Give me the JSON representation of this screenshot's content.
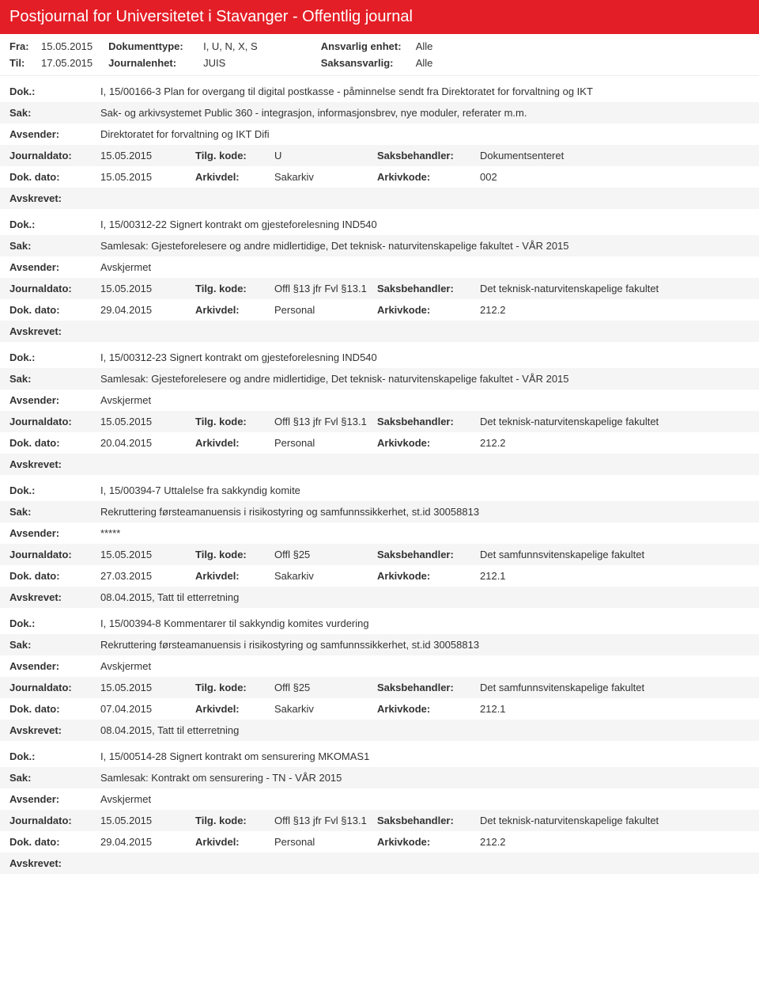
{
  "header": {
    "title": "Postjournal for Universitetet i Stavanger - Offentlig journal"
  },
  "filter": {
    "fra_label": "Fra:",
    "fra_value": "15.05.2015",
    "til_label": "Til:",
    "til_value": "17.05.2015",
    "doktype_label": "Dokumenttype:",
    "doktype_value": "I, U, N, X, S",
    "journalenhet_label": "Journalenhet:",
    "journalenhet_value": "JUIS",
    "ansvarlig_label": "Ansvarlig enhet:",
    "ansvarlig_value": "Alle",
    "saksansvarlig_label": "Saksansvarlig:",
    "saksansvarlig_value": "Alle"
  },
  "labels": {
    "dok": "Dok.:",
    "sak": "Sak:",
    "avsender": "Avsender:",
    "journaldato": "Journaldato:",
    "tilgkode": "Tilg. kode:",
    "saksbehandler": "Saksbehandler:",
    "dokdato": "Dok. dato:",
    "arkivdel": "Arkivdel:",
    "arkivkode": "Arkivkode:",
    "avskrevet": "Avskrevet:"
  },
  "entries": [
    {
      "dok": "I, 15/00166-3 Plan for overgang til digital postkasse - påminnelse sendt fra Direktoratet for forvaltning og IKT",
      "sak": "Sak- og arkivsystemet Public 360 - integrasjon, informasjonsbrev, nye moduler, referater m.m.",
      "avsender": "Direktoratet for forvaltning og IKT Difi",
      "journaldato": "15.05.2015",
      "tilgkode": "U",
      "saksbehandler": "Dokumentsenteret",
      "dokdato": "15.05.2015",
      "arkivdel": "Sakarkiv",
      "arkivkode": "002",
      "avskrevet": ""
    },
    {
      "dok": "I, 15/00312-22 Signert kontrakt om gjesteforelesning IND540",
      "sak": "Samlesak: Gjesteforelesere og andre midlertidige, Det teknisk- naturvitenskapelige fakultet - VÅR 2015",
      "avsender": "Avskjermet",
      "journaldato": "15.05.2015",
      "tilgkode": "Offl §13 jfr Fvl §13.1",
      "saksbehandler": "Det teknisk-naturvitenskapelige fakultet",
      "dokdato": "29.04.2015",
      "arkivdel": "Personal",
      "arkivkode": "212.2",
      "avskrevet": ""
    },
    {
      "dok": "I, 15/00312-23 Signert kontrakt om gjesteforelesning IND540",
      "sak": "Samlesak: Gjesteforelesere og andre midlertidige, Det teknisk- naturvitenskapelige fakultet - VÅR 2015",
      "avsender": "Avskjermet",
      "journaldato": "15.05.2015",
      "tilgkode": "Offl §13 jfr Fvl §13.1",
      "saksbehandler": "Det teknisk-naturvitenskapelige fakultet",
      "dokdato": "20.04.2015",
      "arkivdel": "Personal",
      "arkivkode": "212.2",
      "avskrevet": ""
    },
    {
      "dok": "I, 15/00394-7 Uttalelse fra sakkyndig komite",
      "sak": "Rekruttering førsteamanuensis i risikostyring og samfunnssikkerhet, st.id 30058813",
      "avsender": "*****",
      "journaldato": "15.05.2015",
      "tilgkode": "Offl §25",
      "saksbehandler": "Det samfunnsvitenskapelige fakultet",
      "dokdato": "27.03.2015",
      "arkivdel": "Sakarkiv",
      "arkivkode": "212.1",
      "avskrevet": "08.04.2015, Tatt til etterretning"
    },
    {
      "dok": "I, 15/00394-8 Kommentarer til sakkyndig komites vurdering",
      "sak": "Rekruttering førsteamanuensis i risikostyring og samfunnssikkerhet, st.id 30058813",
      "avsender": "Avskjermet",
      "journaldato": "15.05.2015",
      "tilgkode": "Offl §25",
      "saksbehandler": "Det samfunnsvitenskapelige fakultet",
      "dokdato": "07.04.2015",
      "arkivdel": "Sakarkiv",
      "arkivkode": "212.1",
      "avskrevet": "08.04.2015, Tatt til etterretning"
    },
    {
      "dok": "I, 15/00514-28 Signert kontrakt om sensurering MKOMAS1",
      "sak": "Samlesak: Kontrakt om sensurering - TN - VÅR 2015",
      "avsender": "Avskjermet",
      "journaldato": "15.05.2015",
      "tilgkode": "Offl §13 jfr Fvl §13.1",
      "saksbehandler": "Det teknisk-naturvitenskapelige fakultet",
      "dokdato": "29.04.2015",
      "arkivdel": "Personal",
      "arkivkode": "212.2",
      "avskrevet": ""
    }
  ]
}
